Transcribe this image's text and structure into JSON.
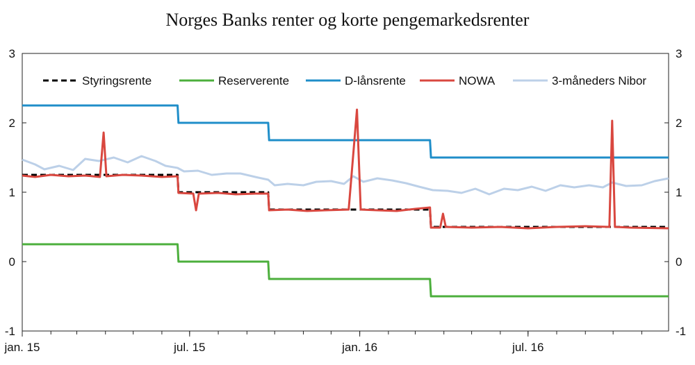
{
  "chart_data": {
    "type": "line",
    "title": "Norges Banks renter og korte pengemarkedsrenter",
    "xlabel": "",
    "ylabel": "",
    "ylim": [
      -1,
      3
    ],
    "yticks": [
      -1,
      0,
      1,
      2,
      3
    ],
    "xlim": [
      "2015-01-01",
      "2016-11-30"
    ],
    "xticks": [
      {
        "date": "2015-01-01",
        "label": "jan. 15"
      },
      {
        "date": "2015-07-01",
        "label": "jul. 15"
      },
      {
        "date": "2016-01-01",
        "label": "jan. 16"
      },
      {
        "date": "2016-07-01",
        "label": "jul. 16"
      }
    ],
    "grid": false,
    "legend_position": "top",
    "series": [
      {
        "name": "Styringsrente",
        "color": "#000000",
        "dash": true,
        "step": true,
        "points": [
          [
            "2015-01-01",
            1.25
          ],
          [
            "2015-06-18",
            1.25
          ],
          [
            "2015-06-19",
            1.0
          ],
          [
            "2015-09-24",
            1.0
          ],
          [
            "2015-09-25",
            0.75
          ],
          [
            "2016-03-17",
            0.75
          ],
          [
            "2016-03-18",
            0.5
          ],
          [
            "2016-11-30",
            0.5
          ]
        ]
      },
      {
        "name": "Reserverente",
        "color": "#4caf3c",
        "step": true,
        "points": [
          [
            "2015-01-01",
            0.25
          ],
          [
            "2015-06-18",
            0.25
          ],
          [
            "2015-06-19",
            0.0
          ],
          [
            "2015-09-24",
            0.0
          ],
          [
            "2015-09-25",
            -0.25
          ],
          [
            "2016-03-17",
            -0.25
          ],
          [
            "2016-03-18",
            -0.5
          ],
          [
            "2016-11-30",
            -0.5
          ]
        ]
      },
      {
        "name": "D-lånsrente",
        "color": "#1f8ec9",
        "step": true,
        "points": [
          [
            "2015-01-01",
            2.25
          ],
          [
            "2015-06-18",
            2.25
          ],
          [
            "2015-06-19",
            2.0
          ],
          [
            "2015-09-24",
            2.0
          ],
          [
            "2015-09-25",
            1.75
          ],
          [
            "2016-03-17",
            1.75
          ],
          [
            "2016-03-18",
            1.5
          ],
          [
            "2016-11-30",
            1.5
          ]
        ]
      },
      {
        "name": "NOWA",
        "color": "#d9473f",
        "points": [
          [
            "2015-01-01",
            1.24
          ],
          [
            "2015-01-15",
            1.22
          ],
          [
            "2015-02-01",
            1.25
          ],
          [
            "2015-02-20",
            1.23
          ],
          [
            "2015-03-10",
            1.24
          ],
          [
            "2015-03-26",
            1.22
          ],
          [
            "2015-03-30",
            1.86
          ],
          [
            "2015-04-02",
            1.23
          ],
          [
            "2015-04-20",
            1.25
          ],
          [
            "2015-05-10",
            1.24
          ],
          [
            "2015-06-01",
            1.22
          ],
          [
            "2015-06-18",
            1.23
          ],
          [
            "2015-06-19",
            0.99
          ],
          [
            "2015-07-05",
            0.98
          ],
          [
            "2015-07-08",
            0.74
          ],
          [
            "2015-07-11",
            0.98
          ],
          [
            "2015-08-01",
            0.99
          ],
          [
            "2015-08-20",
            0.97
          ],
          [
            "2015-09-10",
            0.98
          ],
          [
            "2015-09-24",
            0.98
          ],
          [
            "2015-09-25",
            0.74
          ],
          [
            "2015-10-15",
            0.75
          ],
          [
            "2015-11-05",
            0.73
          ],
          [
            "2015-11-25",
            0.74
          ],
          [
            "2015-12-20",
            0.75
          ],
          [
            "2015-12-29",
            2.19
          ],
          [
            "2016-01-02",
            0.75
          ],
          [
            "2016-01-20",
            0.74
          ],
          [
            "2016-02-10",
            0.73
          ],
          [
            "2016-03-01",
            0.76
          ],
          [
            "2016-03-17",
            0.78
          ],
          [
            "2016-03-18",
            0.49
          ],
          [
            "2016-03-28",
            0.49
          ],
          [
            "2016-03-31",
            0.69
          ],
          [
            "2016-04-03",
            0.5
          ],
          [
            "2016-05-01",
            0.49
          ],
          [
            "2016-06-01",
            0.5
          ],
          [
            "2016-07-01",
            0.48
          ],
          [
            "2016-08-01",
            0.5
          ],
          [
            "2016-09-01",
            0.51
          ],
          [
            "2016-09-27",
            0.5
          ],
          [
            "2016-09-30",
            2.03
          ],
          [
            "2016-10-03",
            0.5
          ],
          [
            "2016-10-20",
            0.49
          ],
          [
            "2016-11-30",
            0.48
          ]
        ]
      },
      {
        "name": "3-måneders Nibor",
        "color": "#bcd0e8",
        "points": [
          [
            "2015-01-01",
            1.47
          ],
          [
            "2015-01-15",
            1.4
          ],
          [
            "2015-01-25",
            1.33
          ],
          [
            "2015-02-10",
            1.38
          ],
          [
            "2015-02-25",
            1.32
          ],
          [
            "2015-03-10",
            1.48
          ],
          [
            "2015-03-25",
            1.45
          ],
          [
            "2015-04-10",
            1.5
          ],
          [
            "2015-04-25",
            1.43
          ],
          [
            "2015-05-10",
            1.52
          ],
          [
            "2015-05-25",
            1.45
          ],
          [
            "2015-06-05",
            1.38
          ],
          [
            "2015-06-18",
            1.35
          ],
          [
            "2015-06-25",
            1.3
          ],
          [
            "2015-07-10",
            1.31
          ],
          [
            "2015-07-25",
            1.25
          ],
          [
            "2015-08-10",
            1.27
          ],
          [
            "2015-08-25",
            1.27
          ],
          [
            "2015-09-10",
            1.22
          ],
          [
            "2015-09-24",
            1.18
          ],
          [
            "2015-10-01",
            1.1
          ],
          [
            "2015-10-15",
            1.12
          ],
          [
            "2015-11-01",
            1.1
          ],
          [
            "2015-11-15",
            1.15
          ],
          [
            "2015-12-01",
            1.16
          ],
          [
            "2015-12-15",
            1.12
          ],
          [
            "2015-12-25",
            1.23
          ],
          [
            "2016-01-05",
            1.15
          ],
          [
            "2016-01-20",
            1.2
          ],
          [
            "2016-02-05",
            1.17
          ],
          [
            "2016-02-20",
            1.13
          ],
          [
            "2016-03-05",
            1.08
          ],
          [
            "2016-03-20",
            1.03
          ],
          [
            "2016-04-05",
            1.02
          ],
          [
            "2016-04-20",
            0.99
          ],
          [
            "2016-05-05",
            1.05
          ],
          [
            "2016-05-20",
            0.97
          ],
          [
            "2016-06-05",
            1.05
          ],
          [
            "2016-06-20",
            1.03
          ],
          [
            "2016-07-05",
            1.08
          ],
          [
            "2016-07-20",
            1.02
          ],
          [
            "2016-08-05",
            1.1
          ],
          [
            "2016-08-20",
            1.07
          ],
          [
            "2016-09-05",
            1.1
          ],
          [
            "2016-09-20",
            1.07
          ],
          [
            "2016-09-30",
            1.14
          ],
          [
            "2016-10-15",
            1.09
          ],
          [
            "2016-11-01",
            1.1
          ],
          [
            "2016-11-15",
            1.16
          ],
          [
            "2016-11-30",
            1.2
          ]
        ]
      }
    ]
  }
}
